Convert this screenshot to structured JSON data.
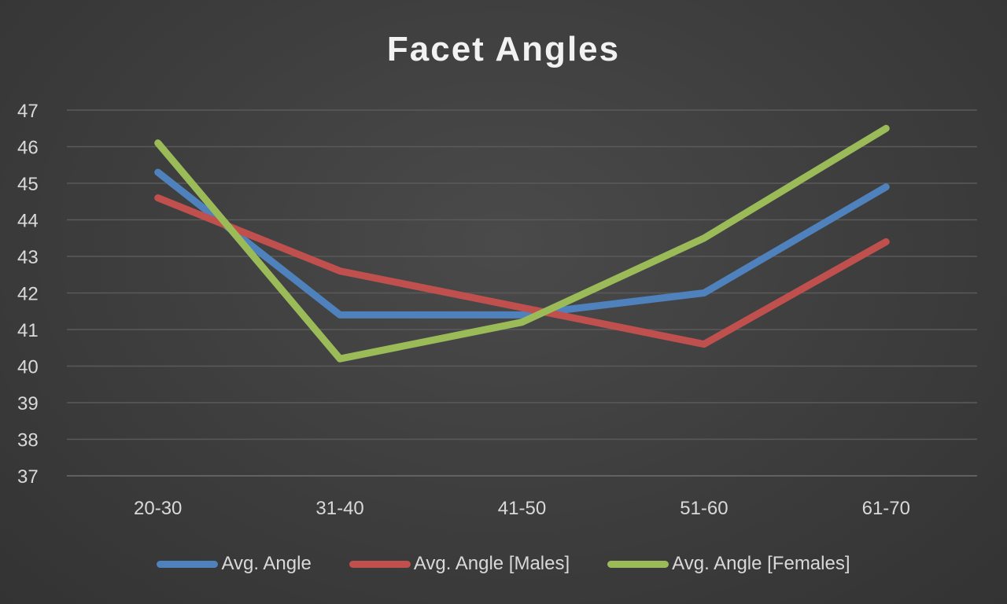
{
  "chart_data": {
    "type": "line",
    "title": "Facet Angles",
    "xlabel": "",
    "ylabel": "",
    "categories": [
      "20-30",
      "31-40",
      "41-50",
      "51-60",
      "61-70"
    ],
    "ylim": [
      37,
      47
    ],
    "yticks": [
      37,
      38,
      39,
      40,
      41,
      42,
      43,
      44,
      45,
      46,
      47
    ],
    "grid": true,
    "legend_position": "bottom",
    "series": [
      {
        "name": "Avg. Angle",
        "color": "#4f81bd",
        "values": [
          45.3,
          41.4,
          41.4,
          42.0,
          44.9
        ]
      },
      {
        "name": "Avg. Angle [Males]",
        "color": "#c0504d",
        "values": [
          44.6,
          42.6,
          41.6,
          40.6,
          43.4
        ]
      },
      {
        "name": "Avg. Angle [Females]",
        "color": "#9bbb59",
        "values": [
          46.1,
          40.2,
          41.2,
          43.5,
          46.5
        ]
      }
    ]
  }
}
